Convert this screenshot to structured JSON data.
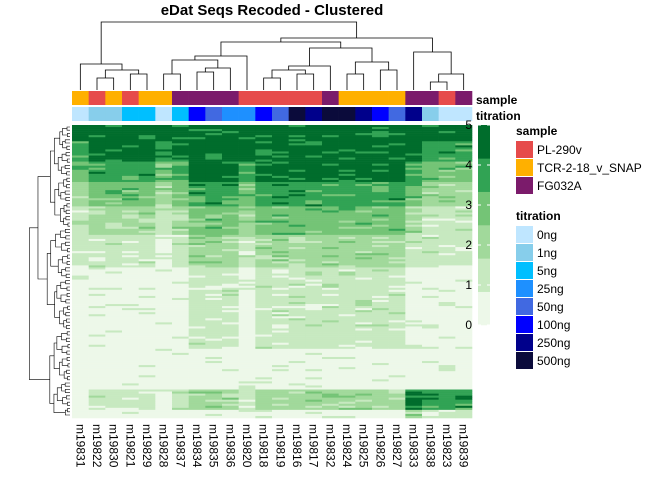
{
  "chart_data": {
    "type": "heatmap",
    "title": "eDat Seqs Recoded - Clustered",
    "columns": [
      "m19831",
      "m19822",
      "m19830",
      "m19821",
      "m19829",
      "m19828",
      "m19837",
      "m19834",
      "m19835",
      "m19836",
      "m19820",
      "m19818",
      "m19819",
      "m19816",
      "m19817",
      "m19832",
      "m19824",
      "m19825",
      "m19826",
      "m19827",
      "m19833",
      "m19838",
      "m19823",
      "m19839"
    ],
    "column_sample": [
      "TCR-2-18_v_SNAP",
      "PL-290v",
      "TCR-2-18_v_SNAP",
      "PL-290v",
      "TCR-2-18_v_SNAP",
      "TCR-2-18_v_SNAP",
      "FG032A",
      "FG032A",
      "FG032A",
      "FG032A",
      "PL-290v",
      "PL-290v",
      "PL-290v",
      "PL-290v",
      "PL-290v",
      "FG032A",
      "TCR-2-18_v_SNAP",
      "TCR-2-18_v_SNAP",
      "TCR-2-18_v_SNAP",
      "TCR-2-18_v_SNAP",
      "FG032A",
      "FG032A",
      "PL-290v",
      "FG032A"
    ],
    "column_titration": [
      "0ng",
      "1ng",
      "1ng",
      "5ng",
      "5ng",
      "0ng",
      "5ng",
      "100ng",
      "50ng",
      "25ng",
      "25ng",
      "100ng",
      "50ng",
      "500ng",
      "250ng",
      "500ng",
      "500ng",
      "250ng",
      "100ng",
      "50ng",
      "250ng",
      "1ng",
      "0ng",
      "0ng"
    ],
    "annotation_rows": [
      "sample",
      "titration"
    ],
    "value_range": [
      0,
      5
    ],
    "legends": [
      {
        "title": "sample",
        "entries": [
          {
            "label": "PL-290v",
            "color": "#E64B4B"
          },
          {
            "label": "TCR-2-18_v_SNAP",
            "color": "#FFB000"
          },
          {
            "label": "FG032A",
            "color": "#7B1B6B"
          }
        ]
      },
      {
        "title": "titration",
        "entries": [
          {
            "label": "0ng",
            "color": "#BFE6FF"
          },
          {
            "label": "1ng",
            "color": "#87CEEB"
          },
          {
            "label": "5ng",
            "color": "#00BFFF"
          },
          {
            "label": "25ng",
            "color": "#1E90FF"
          },
          {
            "label": "50ng",
            "color": "#4169E1"
          },
          {
            "label": "100ng",
            "color": "#0000FF"
          },
          {
            "label": "250ng",
            "color": "#00008B"
          },
          {
            "label": "500ng",
            "color": "#0B0B3B"
          }
        ]
      }
    ],
    "colorbar": {
      "ticks": [
        "0",
        "1",
        "2",
        "3",
        "4",
        "5"
      ],
      "colors": [
        "#EDF8E9",
        "#C7E9C0",
        "#A1D99B",
        "#74C476",
        "#31A354",
        "#006D2C"
      ]
    },
    "row_groups": [
      {
        "rows": 8,
        "profile": [
          5,
          5,
          5,
          5,
          5,
          5,
          5,
          5,
          5,
          5,
          5,
          5,
          5,
          5,
          5,
          5,
          5,
          5,
          5,
          5,
          5,
          5,
          5,
          5
        ]
      },
      {
        "rows": 10,
        "profile": [
          4,
          5,
          5,
          5,
          5,
          4,
          5,
          5,
          5,
          5,
          5,
          5,
          5,
          5,
          5,
          5,
          5,
          5,
          5,
          5,
          5,
          4,
          4,
          4
        ]
      },
      {
        "rows": 10,
        "profile": [
          3,
          4,
          4,
          4,
          4,
          3,
          4,
          5,
          5,
          5,
          4,
          5,
          5,
          5,
          5,
          5,
          5,
          5,
          5,
          5,
          4,
          3,
          3,
          3
        ]
      },
      {
        "rows": 12,
        "profile": [
          2,
          3,
          3,
          3,
          3,
          2,
          3,
          4,
          4,
          4,
          3,
          4,
          4,
          4,
          4,
          4,
          4,
          4,
          4,
          4,
          3,
          2,
          2,
          2
        ]
      },
      {
        "rows": 14,
        "profile": [
          1,
          2,
          2,
          2,
          2,
          1,
          2,
          3,
          3,
          3,
          2,
          3,
          3,
          3,
          3,
          3,
          3,
          3,
          3,
          3,
          2,
          1,
          1,
          1
        ]
      },
      {
        "rows": 16,
        "profile": [
          1,
          1,
          1,
          1,
          1,
          0,
          1,
          2,
          2,
          2,
          1,
          2,
          2,
          2,
          2,
          2,
          2,
          2,
          2,
          2,
          1,
          1,
          1,
          1
        ]
      },
      {
        "rows": 40,
        "profile": [
          0,
          0,
          0,
          0,
          0,
          0,
          0,
          1,
          1,
          1,
          0,
          1,
          1,
          1,
          1,
          1,
          1,
          1,
          1,
          1,
          0,
          0,
          0,
          0
        ]
      },
      {
        "rows": 20,
        "profile": [
          0,
          0,
          0,
          0,
          0,
          0,
          0,
          0,
          0,
          0,
          0,
          0,
          0,
          0,
          0,
          0,
          0,
          0,
          0,
          0,
          0,
          0,
          0,
          0
        ]
      },
      {
        "rows": 10,
        "profile": [
          0,
          1,
          1,
          1,
          1,
          0,
          1,
          2,
          2,
          2,
          1,
          2,
          2,
          2,
          2,
          2,
          2,
          2,
          2,
          2,
          5,
          4,
          4,
          4
        ]
      },
      {
        "rows": 4,
        "profile": [
          0,
          0,
          0,
          0,
          0,
          0,
          0,
          0,
          0,
          0,
          0,
          0,
          0,
          0,
          0,
          0,
          0,
          0,
          0,
          0,
          2,
          1,
          1,
          1
        ]
      }
    ]
  }
}
